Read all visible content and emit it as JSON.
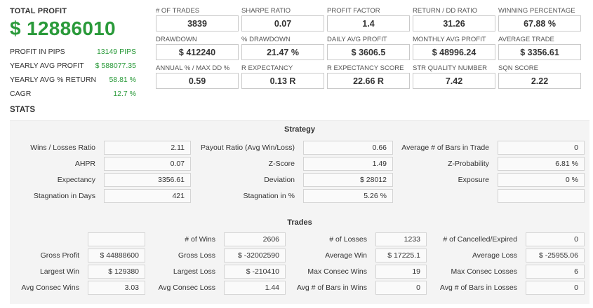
{
  "summary": {
    "total_profit_label": "TOTAL PROFIT",
    "total_profit_value": "$ 12886010",
    "rows": [
      {
        "label": "PROFIT IN PIPS",
        "value": "13149 PIPS"
      },
      {
        "label": "YEARLY AVG PROFIT",
        "value": "$ 588077.35"
      },
      {
        "label": "YEARLY AVG % RETURN",
        "value": "58.81 %"
      },
      {
        "label": "CAGR",
        "value": "12.7 %"
      }
    ]
  },
  "metrics": [
    {
      "label": "# OF TRADES",
      "value": "3839"
    },
    {
      "label": "SHARPE RATIO",
      "value": "0.07"
    },
    {
      "label": "PROFIT FACTOR",
      "value": "1.4"
    },
    {
      "label": "RETURN / DD RATIO",
      "value": "31.26"
    },
    {
      "label": "WINNING PERCENTAGE",
      "value": "67.88 %"
    },
    {
      "label": "DRAWDOWN",
      "value": "$ 412240"
    },
    {
      "label": "% DRAWDOWN",
      "value": "21.47 %"
    },
    {
      "label": "DAILY AVG PROFIT",
      "value": "$ 3606.5"
    },
    {
      "label": "MONTHLY AVG PROFIT",
      "value": "$ 48996.24"
    },
    {
      "label": "AVERAGE TRADE",
      "value": "$ 3356.61"
    },
    {
      "label": "ANNUAL % / MAX DD %",
      "value": "0.59"
    },
    {
      "label": "R EXPECTANCY",
      "value": "0.13 R"
    },
    {
      "label": "R EXPECTANCY SCORE",
      "value": "22.66 R"
    },
    {
      "label": "STR QUALITY NUMBER",
      "value": "7.42"
    },
    {
      "label": "SQN SCORE",
      "value": "2.22"
    }
  ],
  "stats": {
    "title": "STATS",
    "strategy": {
      "title": "Strategy",
      "rows": [
        [
          {
            "label": "Wins / Losses Ratio",
            "value": "2.11"
          },
          {
            "label": "Payout Ratio (Avg Win/Loss)",
            "value": "0.66"
          },
          {
            "label": "Average # of Bars in Trade",
            "value": "0"
          }
        ],
        [
          {
            "label": "AHPR",
            "value": "0.07"
          },
          {
            "label": "Z-Score",
            "value": "1.49"
          },
          {
            "label": "Z-Probability",
            "value": "6.81 %"
          }
        ],
        [
          {
            "label": "Expectancy",
            "value": "3356.61"
          },
          {
            "label": "Deviation",
            "value": "$ 28012"
          },
          {
            "label": "Exposure",
            "value": "0 %"
          }
        ],
        [
          {
            "label": "Stagnation in Days",
            "value": "421"
          },
          {
            "label": "Stagnation in %",
            "value": "5.26 %"
          },
          {
            "label": "",
            "value": ""
          }
        ]
      ]
    },
    "trades": {
      "title": "Trades",
      "rows": [
        [
          {
            "label": "",
            "value": ""
          },
          {
            "label": "# of Wins",
            "value": "2606"
          },
          {
            "label": "# of Losses",
            "value": "1233"
          },
          {
            "label": "# of Cancelled/Expired",
            "value": "0"
          }
        ],
        [
          {
            "label": "Gross Profit",
            "value": "$ 44888600"
          },
          {
            "label": "Gross Loss",
            "value": "$ -32002590"
          },
          {
            "label": "Average Win",
            "value": "$ 17225.1"
          },
          {
            "label": "Average Loss",
            "value": "$ -25955.06"
          }
        ],
        [
          {
            "label": "Largest Win",
            "value": "$ 129380"
          },
          {
            "label": "Largest Loss",
            "value": "$ -210410"
          },
          {
            "label": "Max Consec Wins",
            "value": "19"
          },
          {
            "label": "Max Consec Losses",
            "value": "6"
          }
        ],
        [
          {
            "label": "Avg Consec Wins",
            "value": "3.03"
          },
          {
            "label": "Avg Consec Loss",
            "value": "1.44"
          },
          {
            "label": "Avg # of Bars in Wins",
            "value": "0"
          },
          {
            "label": "Avg # of Bars in Losses",
            "value": "0"
          }
        ]
      ]
    }
  },
  "colors": {
    "profit_green": "#2a9a3a",
    "panel_bg": "#f4f4f4",
    "box_border": "#c9c9c9"
  }
}
